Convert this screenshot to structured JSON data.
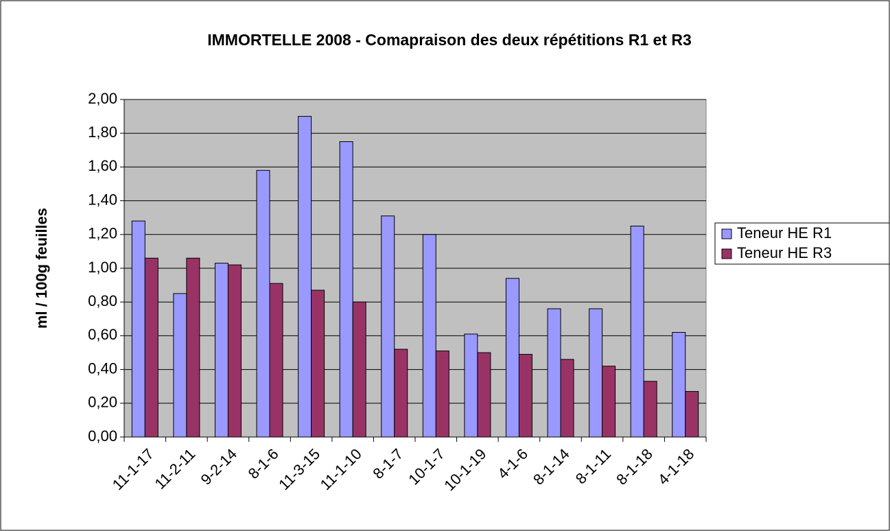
{
  "chart_data": {
    "type": "bar",
    "title": "IMMORTELLE 2008 - Comapraison des deux répétitions R1 et R3",
    "y_label": "ml / 100g feuilles",
    "categories": [
      "11-1-17",
      "11-2-11",
      "9-2-14",
      "8-1-6",
      "11-3-15",
      "11-1-10",
      "8-1-7",
      "10-1-7",
      "10-1-19",
      "4-1-6",
      "8-1-14",
      "8-1-11",
      "8-1-18",
      "4-1-18"
    ],
    "series": [
      {
        "name": "Teneur HE R1",
        "color": "#9999ff",
        "values": [
          1.28,
          0.85,
          1.03,
          1.58,
          1.9,
          1.75,
          1.31,
          1.2,
          0.61,
          0.94,
          0.76,
          0.76,
          1.25,
          0.62
        ]
      },
      {
        "name": "Teneur HE R3",
        "color": "#993366",
        "values": [
          1.06,
          1.06,
          1.02,
          0.91,
          0.87,
          0.8,
          0.52,
          0.51,
          0.5,
          0.49,
          0.46,
          0.42,
          0.33,
          0.27
        ]
      }
    ],
    "ylim": [
      0,
      2
    ],
    "yticks": [
      {
        "value": 0,
        "label": "0,00"
      },
      {
        "value": 0.2,
        "label": "0,20"
      },
      {
        "value": 0.4,
        "label": "0,40"
      },
      {
        "value": 0.6,
        "label": "0,60"
      },
      {
        "value": 0.8,
        "label": "0,80"
      },
      {
        "value": 1,
        "label": "1,00"
      },
      {
        "value": 1.2,
        "label": "1,20"
      },
      {
        "value": 1.4,
        "label": "1,40"
      },
      {
        "value": 1.6,
        "label": "1,60"
      },
      {
        "value": 1.8,
        "label": "1,80"
      },
      {
        "value": 2,
        "label": "2,00"
      }
    ],
    "grid": true,
    "legend": "right",
    "plot_background": "#c0c0c0"
  }
}
